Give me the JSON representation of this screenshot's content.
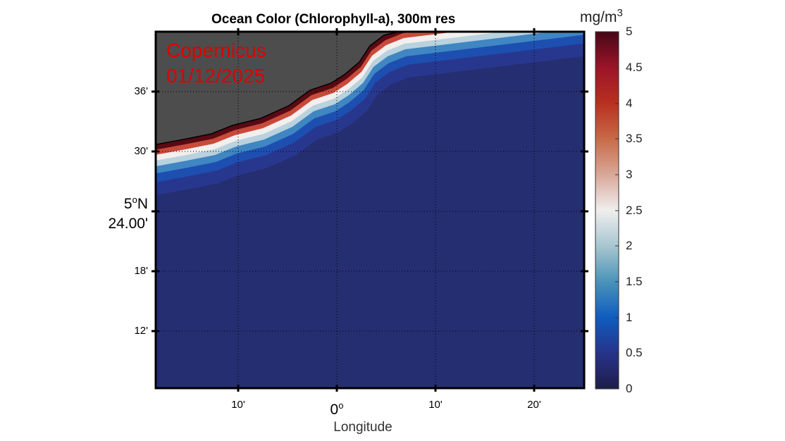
{
  "title": "Ocean Color (Chlorophyll-a), 300m res",
  "annotation": {
    "source": "Copernicus",
    "date": "01/12/2025"
  },
  "x_axis": {
    "label": "Longitude",
    "ticks": [
      "10'",
      "0",
      "10'",
      "20'"
    ],
    "zero_label": "0",
    "zero_sup": "o"
  },
  "y_axis": {
    "ticks": [
      "36'",
      "30'",
      "18'",
      "12'"
    ],
    "center_deg": "5",
    "center_sup": "o",
    "center_hem": "N",
    "center_min": "24.00'"
  },
  "colorbar": {
    "unit": "mg/m",
    "unit_sup": "3",
    "ticks": [
      "5",
      "4.5",
      "4",
      "3.5",
      "3",
      "2.5",
      "2",
      "1.5",
      "1",
      "0.5",
      "0"
    ],
    "range": [
      0,
      5
    ]
  },
  "colors": {
    "land": "#4d4d4d",
    "ocean_low": "#262e72",
    "accent": "#e00000"
  }
}
